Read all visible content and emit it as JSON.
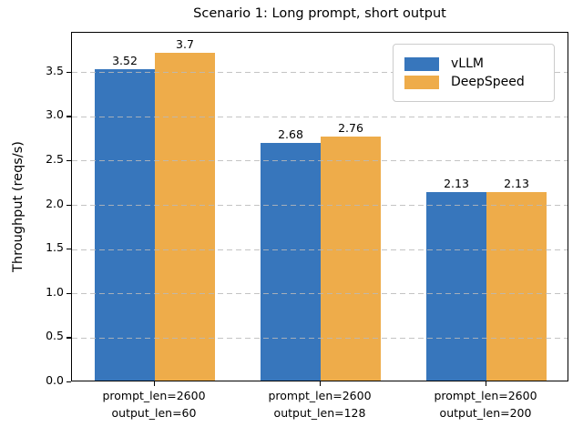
{
  "chart_data": {
    "type": "bar",
    "title": "Scenario 1: Long prompt, short output",
    "xlabel": "",
    "ylabel": "Throughput (reqs/s)",
    "categories": [
      [
        "prompt_len=2600",
        "output_len=60"
      ],
      [
        "prompt_len=2600",
        "output_len=128"
      ],
      [
        "prompt_len=2600",
        "output_len=200"
      ]
    ],
    "series": [
      {
        "name": "vLLM",
        "color": "#3776bc",
        "values": [
          3.52,
          2.68,
          2.13
        ]
      },
      {
        "name": "DeepSpeed",
        "color": "#eeac4a",
        "values": [
          3.7,
          2.76,
          2.13
        ]
      }
    ],
    "bar_value_labels": [
      [
        "3.52",
        "2.68",
        "2.13"
      ],
      [
        "3.7",
        "2.76",
        "2.13"
      ]
    ],
    "yticks": [
      0.0,
      0.5,
      1.0,
      1.5,
      2.0,
      2.5,
      3.0,
      3.5
    ],
    "ylim": [
      0,
      3.95
    ],
    "grid": "horizontal dashed gridlines, drawn over bars",
    "legend_position": "upper right",
    "background_color": "#ffffff",
    "text_color": "#000000"
  }
}
